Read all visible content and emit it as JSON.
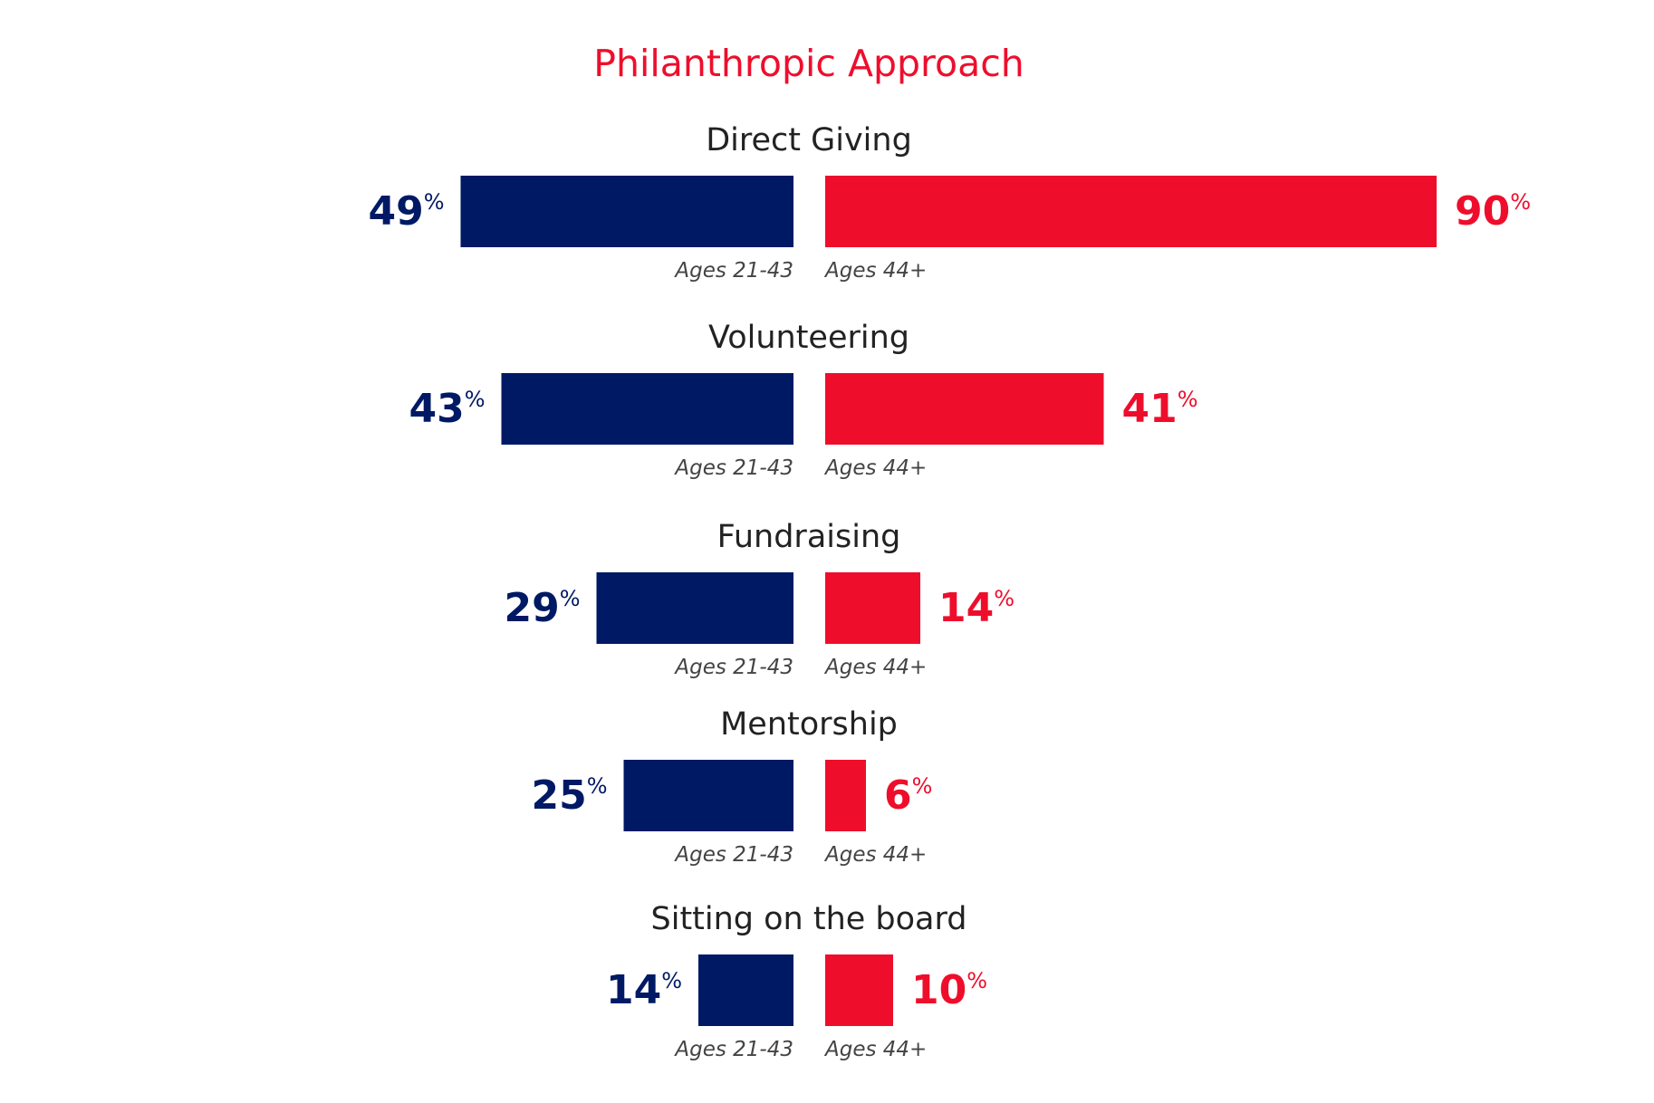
{
  "chart_data": {
    "type": "bar",
    "orientation": "horizontal-diverging",
    "title": "Philanthropic Approach",
    "value_suffix": "%",
    "categories": [
      "Direct Giving",
      "Volunteering",
      "Fundraising",
      "Mentorship",
      "Sitting on the board"
    ],
    "group_labels": [
      "Ages 21-43",
      "Ages 44+"
    ],
    "series": [
      {
        "name": "Ages 21-43",
        "values": [
          49,
          43,
          29,
          25,
          14
        ],
        "color": "#001965",
        "side": "left"
      },
      {
        "name": "Ages 44+",
        "values": [
          90,
          41,
          14,
          6,
          10
        ],
        "color": "#ee0e2c",
        "side": "right"
      }
    ],
    "xlim": [
      0,
      90
    ],
    "grid": false,
    "legend": "none"
  },
  "colors": {
    "title": "#ee0e2c",
    "left": "#001965",
    "right": "#ee0e2c"
  }
}
